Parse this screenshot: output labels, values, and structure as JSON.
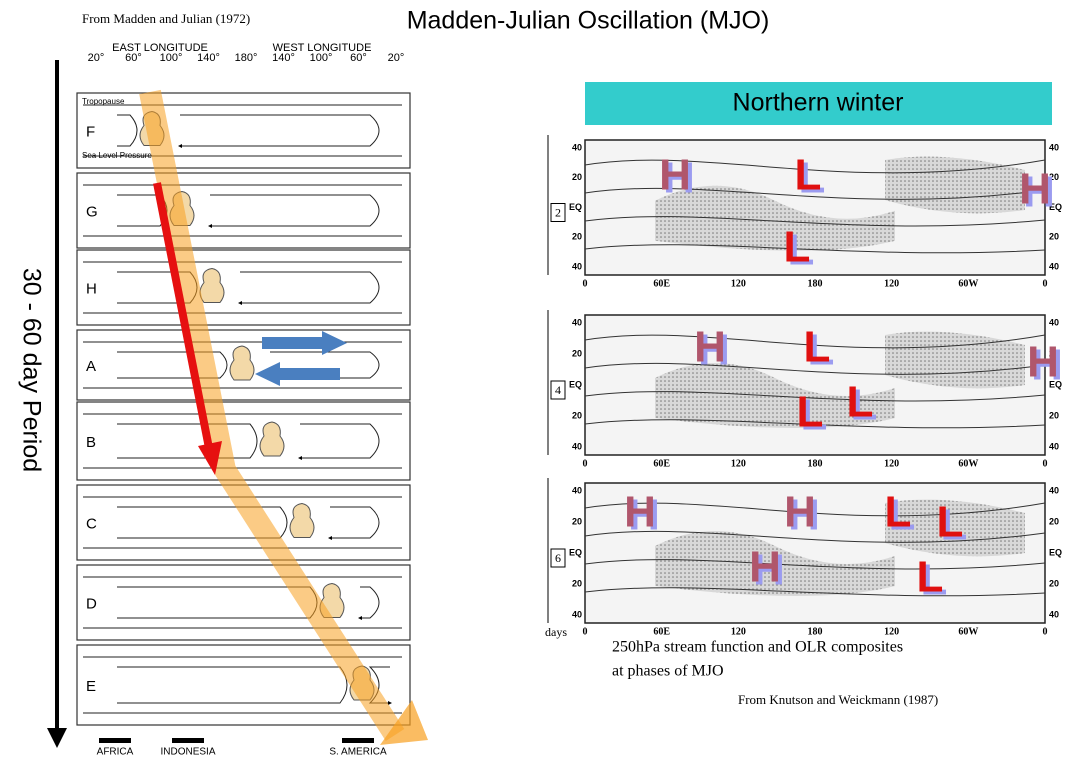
{
  "header": {
    "source": "From Madden and Julian (1972)",
    "title": "Madden-Julian Oscillation (MJO)"
  },
  "left_diagram": {
    "east_label": "EAST LONGITUDE",
    "west_label": "WEST LONGITUDE",
    "longitudes": [
      "20°",
      "60°",
      "100°",
      "140°",
      "180°",
      "140°",
      "100°",
      "60°",
      "20°"
    ],
    "tropopause": "Tropopause",
    "sea_level": "Sea Level Pressure",
    "panels": [
      "F",
      "G",
      "H",
      "A",
      "B",
      "C",
      "D",
      "E"
    ],
    "period": "30 - 60 day Period",
    "regions": [
      "AFRICA",
      "INDONESIA",
      "S. AMERICA"
    ]
  },
  "right_maps": {
    "season": "Northern winter",
    "latitudes": [
      "40",
      "20",
      "EQ",
      "20",
      "40"
    ],
    "longitudes": [
      "0",
      "60E",
      "120",
      "180",
      "120",
      "60W",
      "0"
    ],
    "maps": [
      {
        "phase": "2",
        "labels": [
          "H",
          "L",
          "H",
          "L"
        ]
      },
      {
        "phase": "4",
        "labels": [
          "H",
          "L",
          "H",
          "L",
          "L"
        ]
      },
      {
        "phase": "6",
        "labels": [
          "H",
          "H",
          "L",
          "L",
          "H",
          "L"
        ]
      }
    ],
    "days": "days",
    "caption_1": "250hPa stream function and OLR composites",
    "caption_2": "at phases of MJO",
    "source": "From Knutson and Weickmann (1987)"
  }
}
